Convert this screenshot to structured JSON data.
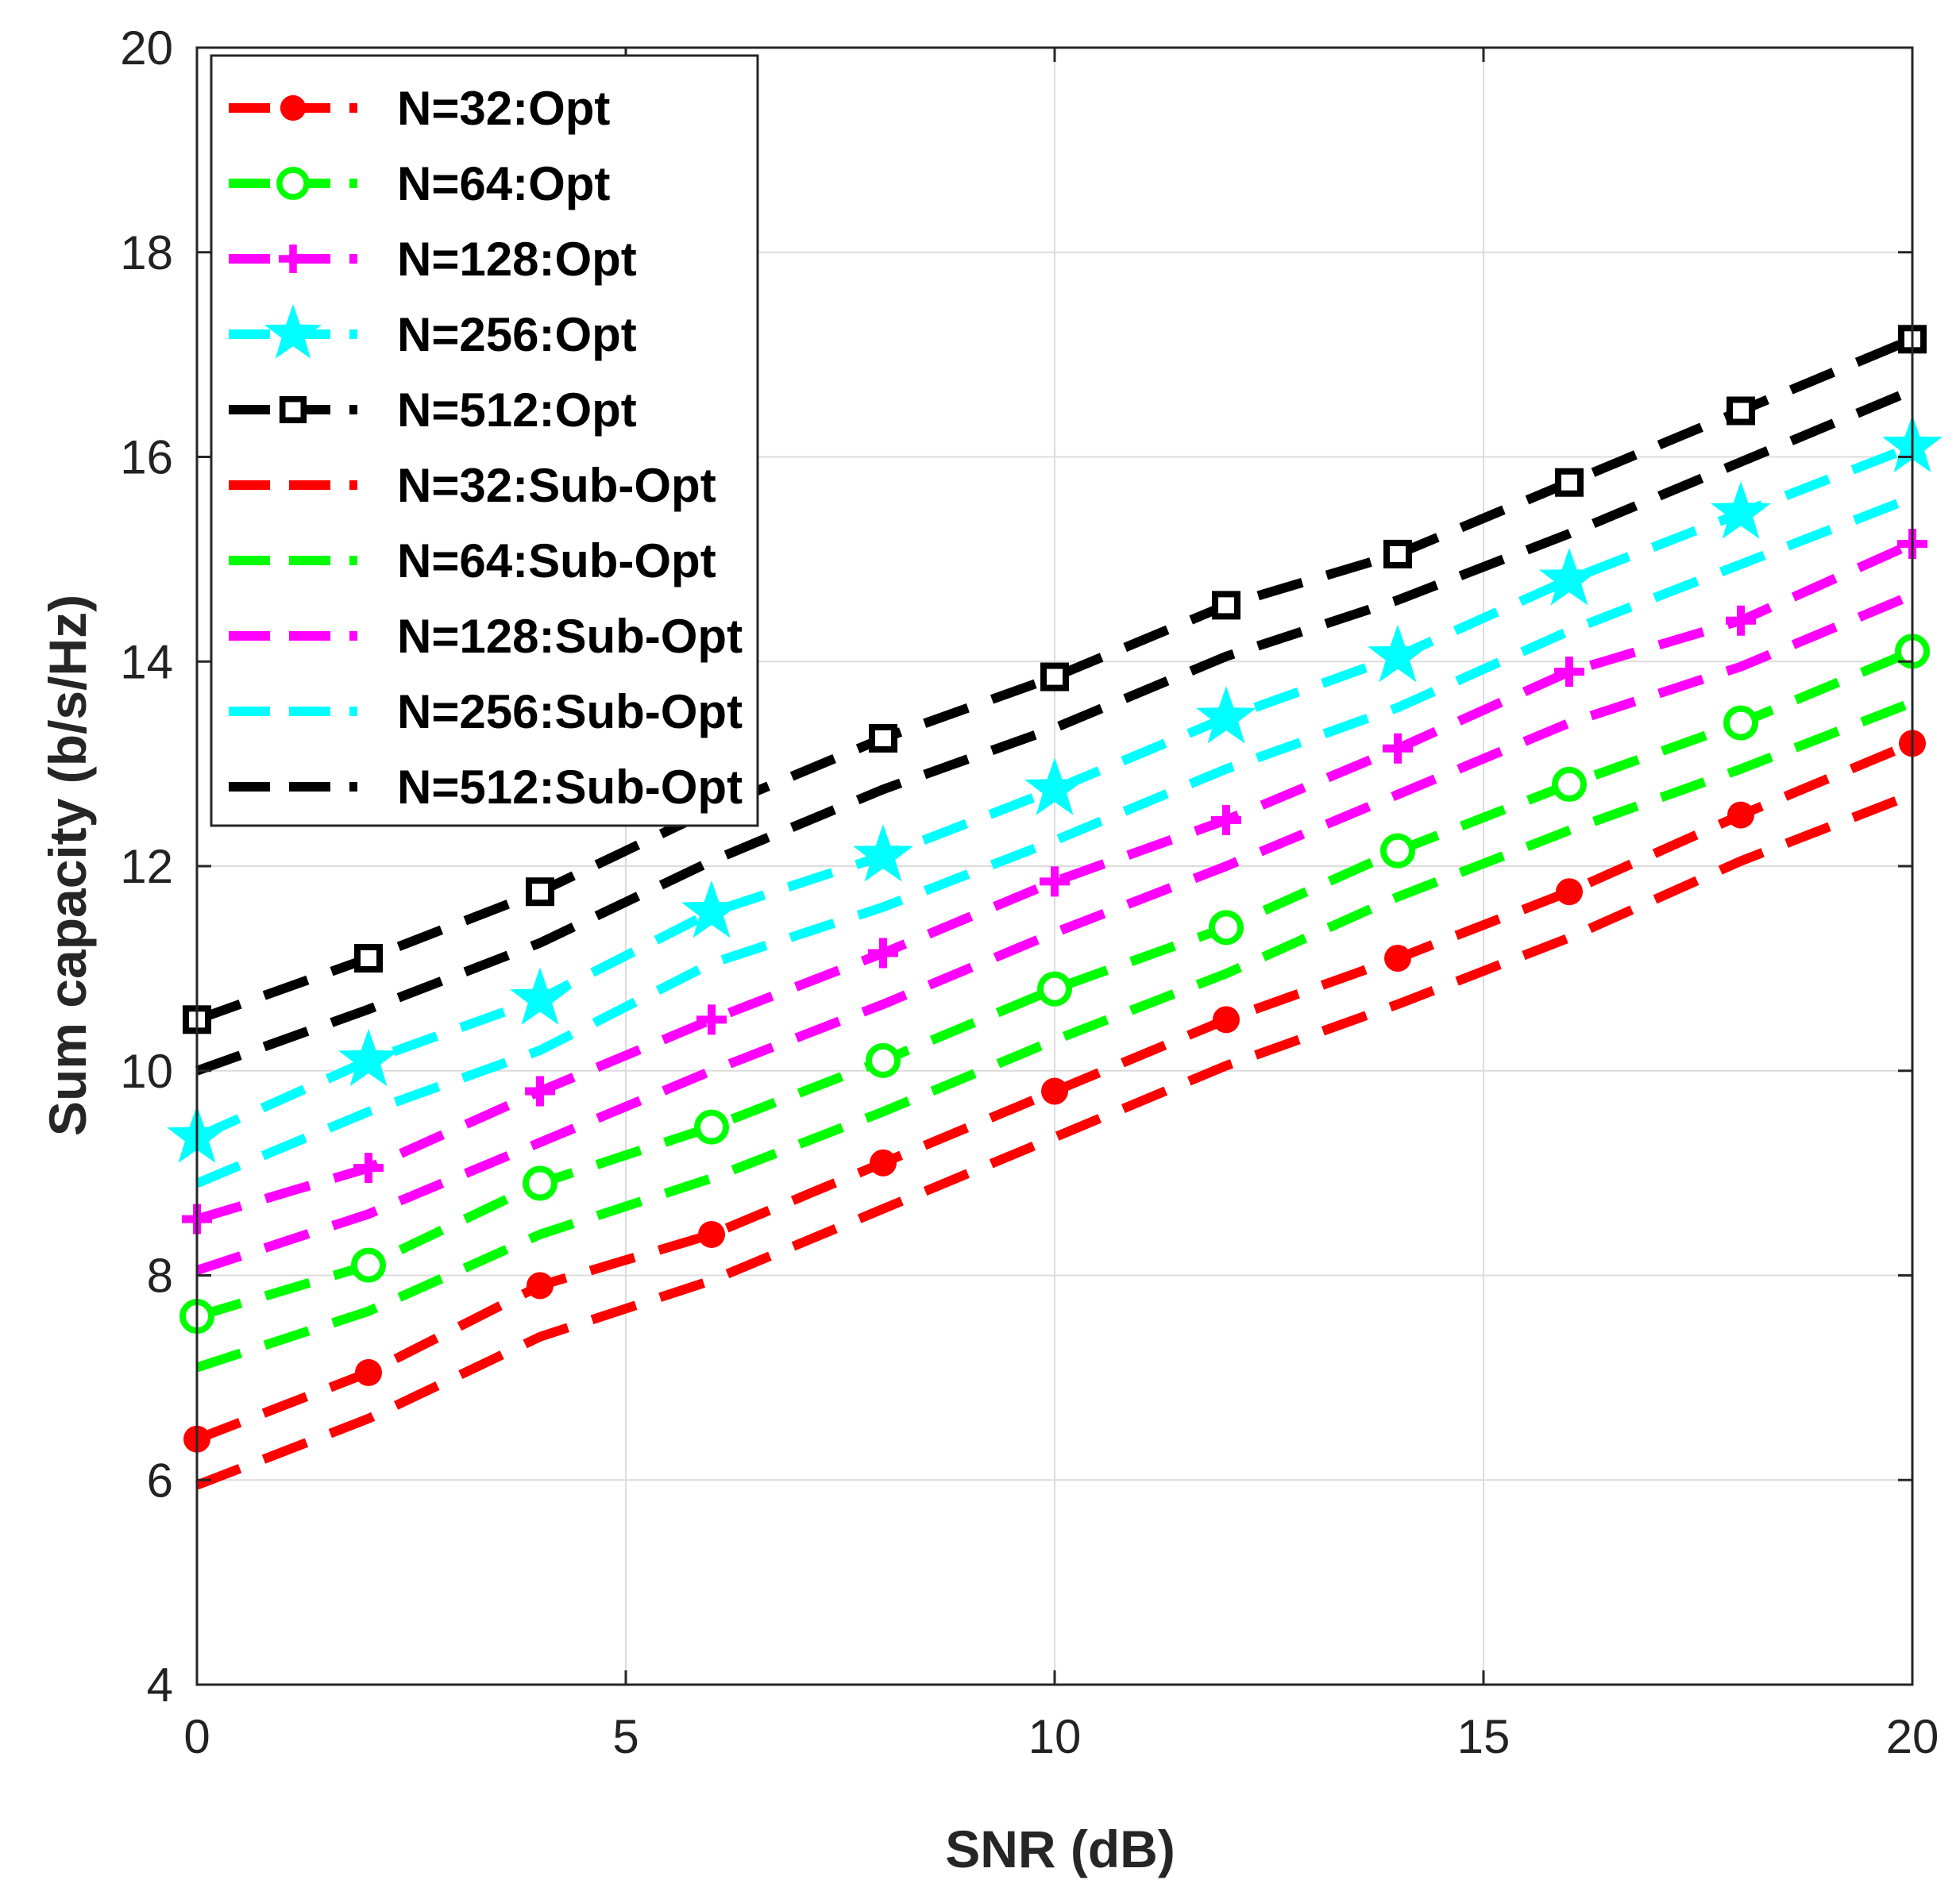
{
  "chart_data": {
    "type": "line",
    "title": "",
    "xlabel": "SNR (dB)",
    "ylabel": "Sum capacity (b/s/Hz)",
    "xlim": [
      0,
      20
    ],
    "ylim": [
      4,
      20
    ],
    "xticks": [
      0,
      5,
      10,
      15,
      20
    ],
    "yticks": [
      4,
      6,
      8,
      10,
      12,
      14,
      16,
      18,
      20
    ],
    "xtick_labels": [
      "0",
      "5",
      "10",
      "15",
      "20"
    ],
    "ytick_labels": [
      "4",
      "6",
      "8",
      "10",
      "12",
      "14",
      "16",
      "18",
      "20"
    ],
    "grid": true,
    "legend_position": "top-left",
    "x": [
      0,
      2,
      4,
      6,
      8,
      10,
      12,
      14,
      16,
      18,
      20
    ],
    "series": [
      {
        "name": "N=32:Opt",
        "color": "#ff0000",
        "marker": "filled-circle",
        "dashed": true,
        "values": [
          6.4,
          7.05,
          7.9,
          8.4,
          9.1,
          9.8,
          10.5,
          11.1,
          11.75,
          12.5,
          13.2
        ]
      },
      {
        "name": "N=64:Opt",
        "color": "#00ff00",
        "marker": "open-circle",
        "dashed": true,
        "values": [
          7.6,
          8.1,
          8.9,
          9.45,
          10.1,
          10.8,
          11.4,
          12.15,
          12.8,
          13.4,
          14.1
        ]
      },
      {
        "name": "N=128:Opt",
        "color": "#ff00ff",
        "marker": "plus",
        "dashed": true,
        "values": [
          8.55,
          9.05,
          9.8,
          10.5,
          11.15,
          11.85,
          12.45,
          13.15,
          13.9,
          14.4,
          15.15
        ]
      },
      {
        "name": "N=256:Opt",
        "color": "#00ffff",
        "marker": "star",
        "dashed": true,
        "values": [
          9.35,
          10.1,
          10.7,
          11.55,
          12.1,
          12.75,
          13.45,
          14.05,
          14.8,
          15.45,
          16.1
        ]
      },
      {
        "name": "N=512:Opt",
        "color": "#000000",
        "marker": "open-square",
        "dashed": true,
        "values": [
          10.5,
          11.1,
          11.75,
          12.55,
          13.25,
          13.85,
          14.55,
          15.05,
          15.75,
          16.45,
          17.15
        ]
      },
      {
        "name": "N=32:Sub-Opt",
        "color": "#ff0000",
        "marker": "none",
        "dashed": true,
        "values": [
          5.95,
          6.6,
          7.4,
          7.95,
          8.65,
          9.35,
          10.05,
          10.65,
          11.3,
          12.05,
          12.7
        ]
      },
      {
        "name": "N=64:Sub-Opt",
        "color": "#00ff00",
        "marker": "none",
        "dashed": true,
        "values": [
          7.1,
          7.65,
          8.4,
          8.95,
          9.6,
          10.3,
          10.95,
          11.7,
          12.35,
          12.95,
          13.6
        ]
      },
      {
        "name": "N=128:Sub-Opt",
        "color": "#ff00ff",
        "marker": "none",
        "dashed": true,
        "values": [
          8.05,
          8.6,
          9.3,
          10.0,
          10.65,
          11.35,
          12.0,
          12.7,
          13.4,
          13.95,
          14.65
        ]
      },
      {
        "name": "N=256:Sub-Opt",
        "color": "#00ffff",
        "marker": "none",
        "dashed": true,
        "values": [
          8.9,
          9.6,
          10.2,
          11.05,
          11.6,
          12.25,
          12.95,
          13.55,
          14.3,
          14.95,
          15.6
        ]
      },
      {
        "name": "N=512:Sub-Opt",
        "color": "#000000",
        "marker": "none",
        "dashed": true,
        "values": [
          10.0,
          10.6,
          11.25,
          12.05,
          12.75,
          13.35,
          14.05,
          14.6,
          15.25,
          15.95,
          16.65
        ]
      }
    ]
  }
}
